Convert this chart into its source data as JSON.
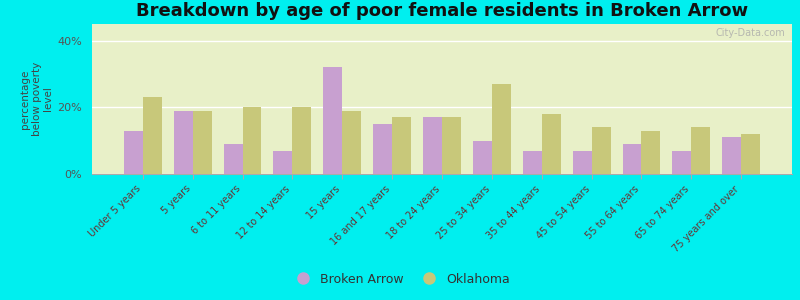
{
  "title": "Breakdown by age of poor female residents in Broken Arrow",
  "ylabel": "percentage\nbelow poverty\nlevel",
  "categories": [
    "Under 5 years",
    "5 years",
    "6 to 11 years",
    "12 to 14 years",
    "15 years",
    "16 and 17 years",
    "18 to 24 years",
    "25 to 34 years",
    "35 to 44 years",
    "45 to 54 years",
    "55 to 64 years",
    "65 to 74 years",
    "75 years and over"
  ],
  "broken_arrow": [
    13,
    19,
    9,
    7,
    32,
    15,
    17,
    10,
    7,
    7,
    9,
    7,
    11
  ],
  "oklahoma": [
    23,
    19,
    20,
    20,
    19,
    17,
    17,
    27,
    18,
    14,
    13,
    14,
    12
  ],
  "bar_color_ba": "#c8a0d0",
  "bar_color_ok": "#c8c87a",
  "background_color": "#e8f0c8",
  "outer_background": "#00efef",
  "ylim": [
    0,
    45
  ],
  "yticks": [
    0,
    20,
    40
  ],
  "ytick_labels": [
    "0%",
    "20%",
    "40%"
  ],
  "legend_ba": "Broken Arrow",
  "legend_ok": "Oklahoma",
  "title_fontsize": 13,
  "watermark": "City-Data.com"
}
